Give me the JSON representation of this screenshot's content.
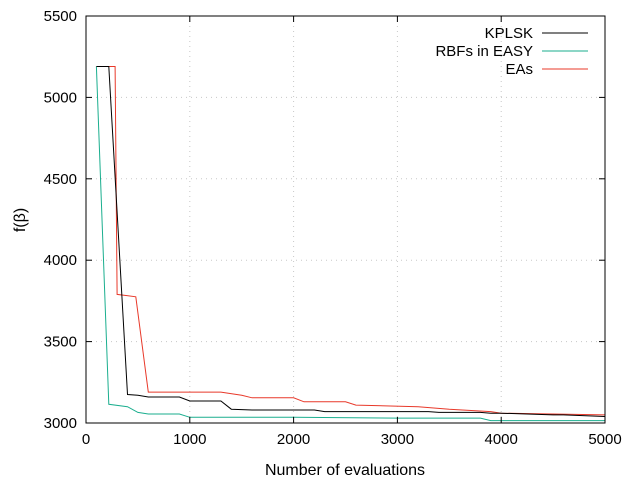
{
  "chart_data": {
    "type": "line",
    "title": "",
    "xlabel": "Number of evaluations",
    "ylabel": "f(β)",
    "xlim": [
      0,
      5000
    ],
    "ylim": [
      3000,
      5500
    ],
    "xticks": [
      0,
      1000,
      2000,
      3000,
      4000,
      5000
    ],
    "yticks": [
      3000,
      3500,
      4000,
      4500,
      5000,
      5500
    ],
    "grid": true,
    "legend_position": "top-right",
    "series": [
      {
        "name": "KPLSK",
        "color": "#000000",
        "x": [
          100,
          220,
          400,
          500,
          600,
          900,
          1000,
          1300,
          1400,
          1600,
          2200,
          2300,
          3300,
          3400,
          3800,
          3900,
          4000,
          4500,
          4600,
          5000
        ],
        "y": [
          5190,
          5190,
          3175,
          3170,
          3160,
          3160,
          3135,
          3135,
          3085,
          3080,
          3080,
          3070,
          3070,
          3065,
          3065,
          3060,
          3060,
          3050,
          3050,
          3040
        ]
      },
      {
        "name": "RBFs in EASY",
        "color": "#1aae8e",
        "x": [
          100,
          220,
          400,
          500,
          600,
          900,
          1000,
          2000,
          3000,
          3800,
          3900,
          5000
        ],
        "y": [
          5190,
          3115,
          3100,
          3065,
          3055,
          3055,
          3035,
          3035,
          3030,
          3030,
          3015,
          3015
        ]
      },
      {
        "name": "EAs",
        "color": "#e8392a",
        "x": [
          200,
          200,
          280,
          300,
          480,
          600,
          1300,
          1500,
          1600,
          2000,
          2100,
          2500,
          2600,
          3200,
          3500,
          3900,
          4000,
          5000
        ],
        "y": [
          5190,
          5190,
          5190,
          3790,
          3775,
          3190,
          3190,
          3170,
          3155,
          3155,
          3130,
          3130,
          3110,
          3100,
          3085,
          3070,
          3060,
          3050
        ]
      }
    ]
  }
}
